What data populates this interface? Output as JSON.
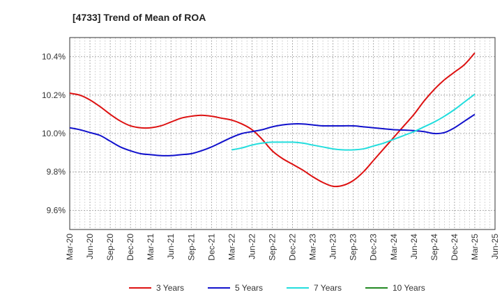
{
  "chart_data": {
    "type": "line",
    "title": "[4733]  Trend of Mean of ROA",
    "xlabel": "",
    "ylabel": "",
    "ylim": [
      9.5,
      10.5
    ],
    "yticks": [
      9.6,
      9.8,
      10.0,
      10.2,
      10.4
    ],
    "ytick_labels": [
      "9.6%",
      "9.8%",
      "10.0%",
      "10.2%",
      "10.4%"
    ],
    "xtick_labels": [
      "Mar-20",
      "Jun-20",
      "Sep-20",
      "Dec-20",
      "Mar-21",
      "Jun-21",
      "Sep-21",
      "Dec-21",
      "Mar-22",
      "Jun-22",
      "Sep-22",
      "Dec-22",
      "Mar-23",
      "Jun-23",
      "Sep-23",
      "Dec-23",
      "Mar-24",
      "Jun-24",
      "Sep-24",
      "Dec-24",
      "Mar-25",
      "Jun-25"
    ],
    "grid": true,
    "legend_position": "bottom",
    "series": [
      {
        "name": "3 Years",
        "color": "#dd1111",
        "points": [
          [
            0,
            10.21
          ],
          [
            0.5,
            10.2
          ],
          [
            1,
            10.175
          ],
          [
            1.5,
            10.14
          ],
          [
            2,
            10.1
          ],
          [
            2.5,
            10.065
          ],
          [
            3,
            10.04
          ],
          [
            3.5,
            10.03
          ],
          [
            4,
            10.03
          ],
          [
            4.5,
            10.04
          ],
          [
            5,
            10.06
          ],
          [
            5.5,
            10.08
          ],
          [
            6,
            10.09
          ],
          [
            6.5,
            10.095
          ],
          [
            7,
            10.09
          ],
          [
            7.5,
            10.08
          ],
          [
            8,
            10.07
          ],
          [
            8.5,
            10.05
          ],
          [
            9,
            10.02
          ],
          [
            9.5,
            9.97
          ],
          [
            10,
            9.91
          ],
          [
            10.5,
            9.87
          ],
          [
            11,
            9.84
          ],
          [
            11.5,
            9.81
          ],
          [
            12,
            9.775
          ],
          [
            12.5,
            9.745
          ],
          [
            13,
            9.725
          ],
          [
            13.5,
            9.73
          ],
          [
            14,
            9.755
          ],
          [
            14.5,
            9.8
          ],
          [
            15,
            9.86
          ],
          [
            15.5,
            9.92
          ],
          [
            16,
            9.98
          ],
          [
            16.5,
            10.04
          ],
          [
            17,
            10.1
          ],
          [
            17.5,
            10.17
          ],
          [
            18,
            10.23
          ],
          [
            18.5,
            10.28
          ],
          [
            19,
            10.32
          ],
          [
            19.5,
            10.36
          ],
          [
            20,
            10.42
          ]
        ]
      },
      {
        "name": "5 Years",
        "color": "#1111cc",
        "points": [
          [
            0,
            10.03
          ],
          [
            0.5,
            10.02
          ],
          [
            1,
            10.005
          ],
          [
            1.5,
            9.99
          ],
          [
            2,
            9.96
          ],
          [
            2.5,
            9.93
          ],
          [
            3,
            9.91
          ],
          [
            3.5,
            9.895
          ],
          [
            4,
            9.89
          ],
          [
            4.5,
            9.885
          ],
          [
            5,
            9.885
          ],
          [
            5.5,
            9.89
          ],
          [
            6,
            9.895
          ],
          [
            6.5,
            9.91
          ],
          [
            7,
            9.93
          ],
          [
            7.5,
            9.955
          ],
          [
            8,
            9.98
          ],
          [
            8.5,
            10.0
          ],
          [
            9,
            10.01
          ],
          [
            9.5,
            10.02
          ],
          [
            10,
            10.035
          ],
          [
            10.5,
            10.045
          ],
          [
            11,
            10.05
          ],
          [
            11.5,
            10.05
          ],
          [
            12,
            10.045
          ],
          [
            12.5,
            10.04
          ],
          [
            13,
            10.04
          ],
          [
            13.5,
            10.04
          ],
          [
            14,
            10.04
          ],
          [
            14.5,
            10.035
          ],
          [
            15,
            10.03
          ],
          [
            15.5,
            10.025
          ],
          [
            16,
            10.02
          ],
          [
            16.5,
            10.018
          ],
          [
            17,
            10.015
          ],
          [
            17.5,
            10.01
          ],
          [
            18,
            10.0
          ],
          [
            18.5,
            10.005
          ],
          [
            19,
            10.03
          ],
          [
            19.5,
            10.065
          ],
          [
            20,
            10.1
          ]
        ]
      },
      {
        "name": "7 Years",
        "color": "#22dddd",
        "points": [
          [
            8,
            9.915
          ],
          [
            8.5,
            9.925
          ],
          [
            9,
            9.94
          ],
          [
            9.5,
            9.95
          ],
          [
            10,
            9.955
          ],
          [
            10.5,
            9.955
          ],
          [
            11,
            9.955
          ],
          [
            11.5,
            9.95
          ],
          [
            12,
            9.94
          ],
          [
            12.5,
            9.93
          ],
          [
            13,
            9.92
          ],
          [
            13.5,
            9.915
          ],
          [
            14,
            9.915
          ],
          [
            14.5,
            9.92
          ],
          [
            15,
            9.935
          ],
          [
            15.5,
            9.95
          ],
          [
            16,
            9.97
          ],
          [
            16.5,
            9.99
          ],
          [
            17,
            10.01
          ],
          [
            17.5,
            10.035
          ],
          [
            18,
            10.06
          ],
          [
            18.5,
            10.09
          ],
          [
            19,
            10.125
          ],
          [
            19.5,
            10.165
          ],
          [
            20,
            10.205
          ]
        ]
      },
      {
        "name": "10 Years",
        "color": "#228822",
        "points": []
      }
    ]
  }
}
